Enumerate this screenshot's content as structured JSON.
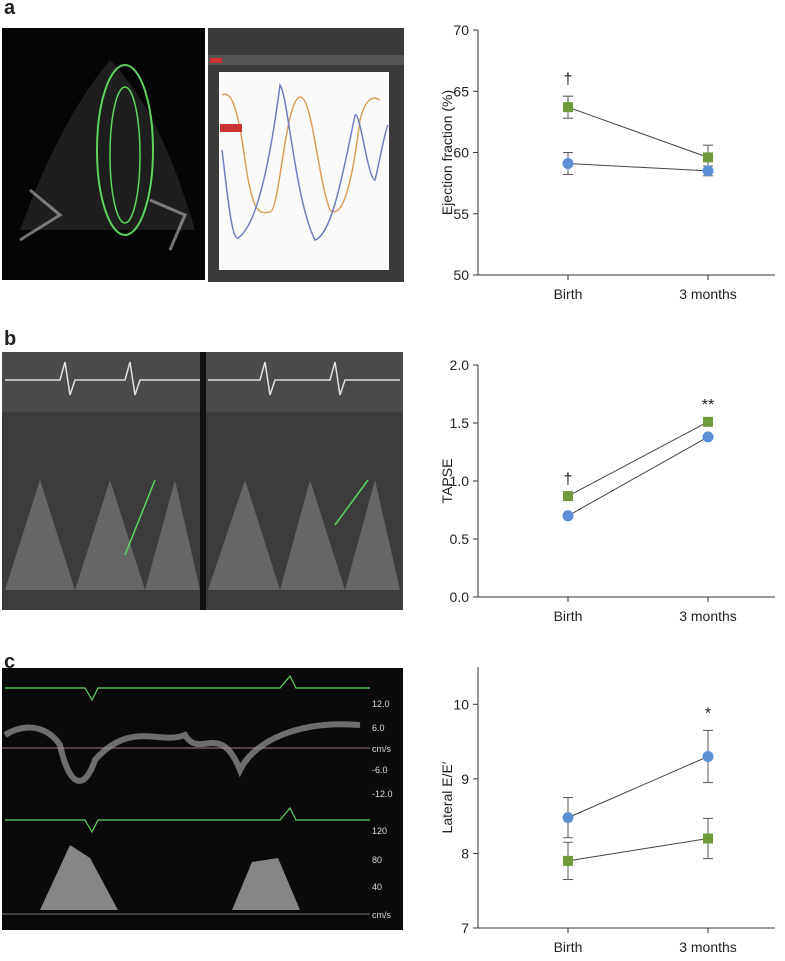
{
  "chart_data": [
    {
      "type": "line",
      "panel": "a",
      "ylabel": "Ejection fraction (%)",
      "categories": [
        "Birth",
        "3 months"
      ],
      "series": [
        {
          "color": "#6e9a3c",
          "marker": "square",
          "values": [
            63.7,
            59.6
          ],
          "errors": [
            0.9,
            1.0
          ]
        },
        {
          "color": "#5b8fd6",
          "marker": "circle",
          "values": [
            59.1,
            58.5
          ],
          "errors": [
            0.9,
            0.4
          ]
        }
      ],
      "annotations": [
        "†",
        null
      ],
      "ylim": [
        50,
        70
      ],
      "yticks": [
        50,
        55,
        60,
        65,
        70
      ]
    },
    {
      "type": "line",
      "panel": "b",
      "ylabel": "TAPSE",
      "categories": [
        "Birth",
        "3 months"
      ],
      "series": [
        {
          "color": "#6e9a3c",
          "marker": "square",
          "values": [
            0.87,
            1.51
          ]
        },
        {
          "color": "#5b8fd6",
          "marker": "circle",
          "values": [
            0.7,
            1.38
          ]
        }
      ],
      "annotations": [
        "†",
        "**"
      ],
      "ylim": [
        0,
        2
      ],
      "yticks": [
        {
          "value": 0,
          "label": "0.0"
        },
        0.5,
        {
          "value": 1,
          "label": "1.0"
        },
        1.5,
        {
          "value": 2,
          "label": "2.0"
        }
      ]
    },
    {
      "type": "line",
      "panel": "c",
      "ylabel": "Lateral E/E′",
      "categories": [
        "Birth",
        "3 months"
      ],
      "series": [
        {
          "color": "#6e9a3c",
          "marker": "square",
          "values": [
            7.9,
            8.2
          ],
          "errors": [
            0.25,
            0.27
          ]
        },
        {
          "color": "#5b8fd6",
          "marker": "circle",
          "values": [
            8.48,
            9.3
          ],
          "errors": [
            0.27,
            0.35
          ]
        }
      ],
      "annotations": [
        null,
        "*"
      ],
      "ylim": [
        7,
        10.5
      ],
      "yticks": [
        7,
        8,
        9,
        10
      ]
    }
  ],
  "images": {
    "c": {
      "scale_labels": [
        "12.0",
        "6.0",
        "cm/s",
        "-6.0",
        "-12.0",
        "120",
        "80",
        "40",
        "cm/s"
      ]
    }
  }
}
